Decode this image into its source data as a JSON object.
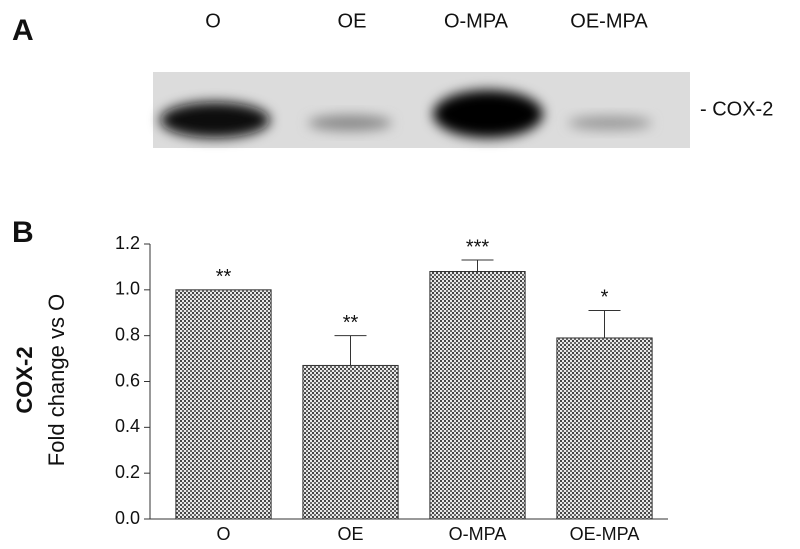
{
  "panel_a": {
    "label": "A",
    "lanes": [
      "O",
      "OE",
      "O-MPA",
      "OE-MPA"
    ],
    "band_label": "- COX-2"
  },
  "chart_data": {
    "type": "bar",
    "panel_label": "B",
    "ylabel_bold": "COX-2",
    "ylabel": "Fold change vs O",
    "categories": [
      "O",
      "OE",
      "O-MPA",
      "OE-MPA"
    ],
    "values": [
      1.0,
      0.67,
      1.08,
      0.79
    ],
    "errors": [
      0,
      0.13,
      0.05,
      0.12
    ],
    "annotations": [
      "**",
      "**",
      "***",
      "*"
    ],
    "color": "#bdbdbd",
    "ylim": [
      0,
      1.2
    ],
    "yticks": [
      {
        "value": 0,
        "label": "0.0"
      },
      0.2,
      0.4,
      0.6,
      0.8,
      {
        "value": 1,
        "label": "1.0"
      },
      1.2
    ]
  }
}
